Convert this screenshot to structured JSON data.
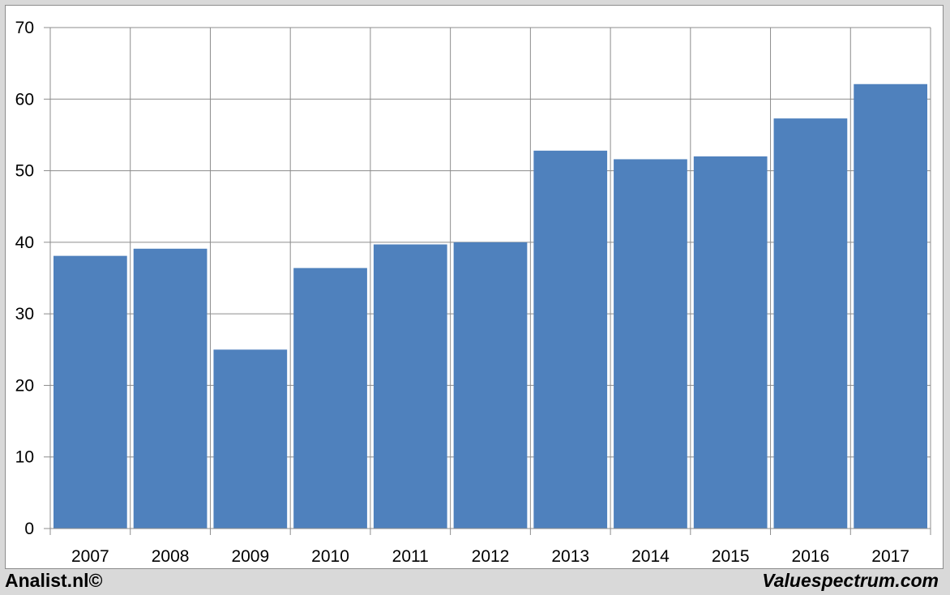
{
  "chart_data": {
    "type": "bar",
    "categories": [
      "2007",
      "2008",
      "2009",
      "2010",
      "2011",
      "2012",
      "2013",
      "2014",
      "2015",
      "2016",
      "2017"
    ],
    "values": [
      38.1,
      39.1,
      25.0,
      36.4,
      39.7,
      40.0,
      52.8,
      51.6,
      52.0,
      57.3,
      62.1
    ],
    "ylim": [
      0,
      70
    ],
    "yticks": [
      "0",
      "10",
      "20",
      "30",
      "40",
      "50",
      "60",
      "70"
    ],
    "title": "",
    "xlabel": "",
    "ylabel": "",
    "grid": true,
    "bar_color": "#4f81bd",
    "grid_color": "#8c8c8c"
  },
  "footer": {
    "left": "Analist.nl©",
    "right": "Valuespectrum.com"
  }
}
